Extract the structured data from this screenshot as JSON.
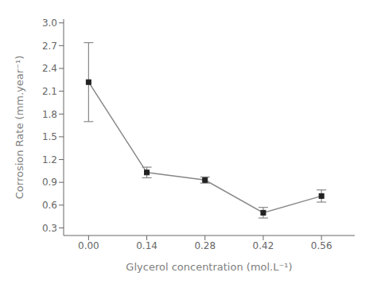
{
  "chart_data": {
    "type": "line",
    "xlabel": "Glycerol concentration (mol.L⁻¹)",
    "ylabel": "Corrosion Rate (mm.year⁻¹)",
    "series": [
      {
        "x": [
          0.0,
          0.14,
          0.28,
          0.42,
          0.56
        ],
        "values": [
          2.22,
          1.03,
          0.93,
          0.5,
          0.72
        ],
        "yerr": [
          0.52,
          0.07,
          0.04,
          0.07,
          0.08
        ],
        "color": "#888888",
        "colors": [
          "#222222",
          "#222222",
          "#222222",
          "#222222",
          "#222222"
        ],
        "marker": "square",
        "line_style": "solid"
      }
    ],
    "xlim": [
      -0.06,
      0.64
    ],
    "xticks": [
      {
        "value": 0,
        "label": "0.00"
      },
      0.14,
      0.28,
      0.42,
      0.56
    ],
    "ylim": [
      0.2,
      3.05
    ],
    "yticks": [
      0.3,
      0.6,
      0.9,
      1.2,
      1.5,
      1.8,
      2.1,
      2.4,
      2.7,
      {
        "value": 3,
        "label": "3.0"
      }
    ],
    "grid": false
  }
}
